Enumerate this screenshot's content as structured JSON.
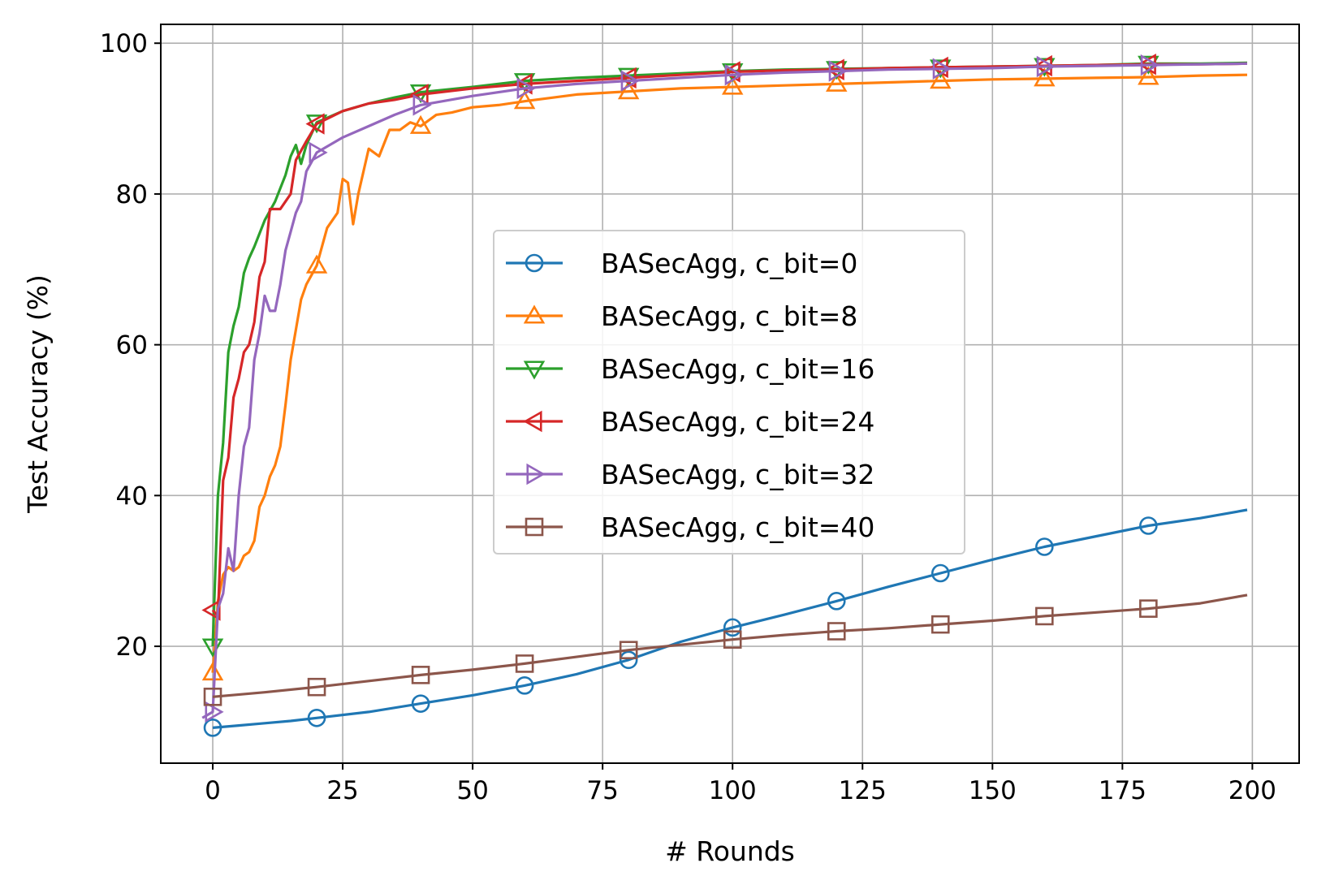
{
  "chart_data": {
    "type": "line",
    "title": "",
    "xlabel": "# Rounds",
    "ylabel": "Test Accuracy (%)",
    "xlim": [
      -10,
      209
    ],
    "ylim": [
      4.5,
      102.5
    ],
    "xticks": [
      0,
      25,
      50,
      75,
      100,
      125,
      150,
      175,
      200
    ],
    "yticks": [
      20,
      40,
      60,
      80,
      100
    ],
    "grid": true,
    "legend_position": "center-right",
    "series": [
      {
        "name": "BASecAgg, c_bit=0",
        "color": "#1f77b4",
        "marker": "circle",
        "points": [
          [
            0,
            9.2
          ],
          [
            5,
            9.5
          ],
          [
            10,
            9.8
          ],
          [
            15,
            10.1
          ],
          [
            20,
            10.5
          ],
          [
            30,
            11.3
          ],
          [
            40,
            12.4
          ],
          [
            50,
            13.5
          ],
          [
            60,
            14.8
          ],
          [
            70,
            16.3
          ],
          [
            80,
            18.2
          ],
          [
            90,
            20.6
          ],
          [
            100,
            22.5
          ],
          [
            110,
            24.2
          ],
          [
            120,
            26.0
          ],
          [
            130,
            27.9
          ],
          [
            140,
            29.7
          ],
          [
            150,
            31.5
          ],
          [
            160,
            33.2
          ],
          [
            170,
            34.6
          ],
          [
            180,
            36.0
          ],
          [
            190,
            37.0
          ],
          [
            199,
            38.1
          ]
        ]
      },
      {
        "name": "BASecAgg, c_bit=8",
        "color": "#ff7f0e",
        "marker": "triangle-up",
        "points": [
          [
            0,
            16.5
          ],
          [
            1,
            26.0
          ],
          [
            2,
            29.5
          ],
          [
            3,
            30.5
          ],
          [
            4,
            30.0
          ],
          [
            5,
            30.5
          ],
          [
            6,
            32.0
          ],
          [
            7,
            32.5
          ],
          [
            8,
            34.0
          ],
          [
            9,
            38.5
          ],
          [
            10,
            40.0
          ],
          [
            11,
            42.5
          ],
          [
            12,
            44.0
          ],
          [
            13,
            46.5
          ],
          [
            14,
            52.0
          ],
          [
            15,
            58.0
          ],
          [
            16,
            62.0
          ],
          [
            17,
            66.0
          ],
          [
            18,
            68.0
          ],
          [
            20,
            70.5
          ],
          [
            22,
            75.5
          ],
          [
            24,
            77.5
          ],
          [
            25,
            82.0
          ],
          [
            26,
            81.5
          ],
          [
            27,
            76.0
          ],
          [
            28,
            80.0
          ],
          [
            30,
            86.0
          ],
          [
            32,
            85.0
          ],
          [
            34,
            88.5
          ],
          [
            36,
            88.5
          ],
          [
            38,
            89.5
          ],
          [
            40,
            89.0
          ],
          [
            43,
            90.5
          ],
          [
            46,
            90.8
          ],
          [
            50,
            91.5
          ],
          [
            55,
            91.8
          ],
          [
            60,
            92.3
          ],
          [
            70,
            93.2
          ],
          [
            80,
            93.6
          ],
          [
            90,
            94.0
          ],
          [
            100,
            94.2
          ],
          [
            110,
            94.4
          ],
          [
            120,
            94.6
          ],
          [
            130,
            94.8
          ],
          [
            140,
            95.0
          ],
          [
            150,
            95.2
          ],
          [
            160,
            95.3
          ],
          [
            170,
            95.4
          ],
          [
            180,
            95.5
          ],
          [
            190,
            95.7
          ],
          [
            199,
            95.8
          ]
        ]
      },
      {
        "name": "BASecAgg, c_bit=16",
        "color": "#2ca02c",
        "marker": "triangle-down",
        "points": [
          [
            0,
            20.0
          ],
          [
            1,
            40.0
          ],
          [
            2,
            47.0
          ],
          [
            3,
            59.0
          ],
          [
            4,
            62.5
          ],
          [
            5,
            65.0
          ],
          [
            6,
            69.5
          ],
          [
            7,
            71.5
          ],
          [
            8,
            73.0
          ],
          [
            10,
            76.5
          ],
          [
            12,
            79.0
          ],
          [
            14,
            82.5
          ],
          [
            15,
            85.0
          ],
          [
            16,
            86.5
          ],
          [
            17,
            84.0
          ],
          [
            18,
            86.5
          ],
          [
            20,
            89.5
          ],
          [
            25,
            91.0
          ],
          [
            30,
            92.0
          ],
          [
            35,
            92.8
          ],
          [
            40,
            93.5
          ],
          [
            50,
            94.2
          ],
          [
            60,
            95.0
          ],
          [
            70,
            95.4
          ],
          [
            80,
            95.7
          ],
          [
            90,
            96.0
          ],
          [
            100,
            96.3
          ],
          [
            110,
            96.5
          ],
          [
            120,
            96.6
          ],
          [
            130,
            96.7
          ],
          [
            140,
            96.8
          ],
          [
            150,
            96.9
          ],
          [
            160,
            97.0
          ],
          [
            170,
            97.1
          ],
          [
            180,
            97.3
          ],
          [
            190,
            97.3
          ],
          [
            199,
            97.4
          ]
        ]
      },
      {
        "name": "BASecAgg, c_bit=24",
        "color": "#d62728",
        "marker": "triangle-left",
        "points": [
          [
            0,
            24.8
          ],
          [
            1,
            24.0
          ],
          [
            2,
            42.0
          ],
          [
            3,
            45.0
          ],
          [
            4,
            53.0
          ],
          [
            5,
            55.5
          ],
          [
            6,
            59.0
          ],
          [
            7,
            60.0
          ],
          [
            8,
            63.0
          ],
          [
            9,
            69.0
          ],
          [
            10,
            71.0
          ],
          [
            11,
            78.0
          ],
          [
            12,
            78.0
          ],
          [
            13,
            78.0
          ],
          [
            14,
            79.0
          ],
          [
            15,
            80.0
          ],
          [
            16,
            84.5
          ],
          [
            18,
            87.0
          ],
          [
            20,
            89.3
          ],
          [
            25,
            91.0
          ],
          [
            30,
            92.0
          ],
          [
            35,
            92.5
          ],
          [
            40,
            93.2
          ],
          [
            50,
            94.0
          ],
          [
            60,
            94.6
          ],
          [
            70,
            95.0
          ],
          [
            80,
            95.4
          ],
          [
            90,
            95.8
          ],
          [
            100,
            96.2
          ],
          [
            110,
            96.4
          ],
          [
            120,
            96.5
          ],
          [
            130,
            96.7
          ],
          [
            140,
            96.8
          ],
          [
            150,
            96.9
          ],
          [
            160,
            97.0
          ],
          [
            170,
            97.1
          ],
          [
            180,
            97.2
          ],
          [
            190,
            97.2
          ],
          [
            199,
            97.3
          ]
        ]
      },
      {
        "name": "BASecAgg, c_bit=32",
        "color": "#9467bd",
        "marker": "triangle-right",
        "points": [
          [
            -2,
            10.5
          ],
          [
            0,
            11.3
          ],
          [
            1,
            25.0
          ],
          [
            2,
            27.0
          ],
          [
            3,
            33.0
          ],
          [
            4,
            30.0
          ],
          [
            5,
            40.0
          ],
          [
            6,
            46.5
          ],
          [
            7,
            49.0
          ],
          [
            8,
            58.0
          ],
          [
            9,
            61.5
          ],
          [
            10,
            66.5
          ],
          [
            11,
            64.5
          ],
          [
            12,
            64.5
          ],
          [
            13,
            68.0
          ],
          [
            14,
            72.5
          ],
          [
            15,
            75.0
          ],
          [
            16,
            77.5
          ],
          [
            17,
            79.0
          ],
          [
            18,
            83.0
          ],
          [
            20,
            85.5
          ],
          [
            25,
            87.5
          ],
          [
            30,
            89.0
          ],
          [
            35,
            90.5
          ],
          [
            40,
            91.8
          ],
          [
            50,
            93.0
          ],
          [
            60,
            94.0
          ],
          [
            70,
            94.6
          ],
          [
            80,
            95.0
          ],
          [
            90,
            95.4
          ],
          [
            100,
            95.8
          ],
          [
            110,
            96.1
          ],
          [
            120,
            96.3
          ],
          [
            130,
            96.5
          ],
          [
            140,
            96.6
          ],
          [
            150,
            96.7
          ],
          [
            160,
            96.9
          ],
          [
            170,
            97.0
          ],
          [
            180,
            97.1
          ],
          [
            190,
            97.2
          ],
          [
            199,
            97.3
          ]
        ]
      },
      {
        "name": "BASecAgg, c_bit=40",
        "color": "#8c564b",
        "marker": "square",
        "points": [
          [
            0,
            13.3
          ],
          [
            10,
            13.9
          ],
          [
            20,
            14.6
          ],
          [
            30,
            15.4
          ],
          [
            40,
            16.2
          ],
          [
            50,
            16.9
          ],
          [
            60,
            17.7
          ],
          [
            70,
            18.6
          ],
          [
            80,
            19.5
          ],
          [
            90,
            20.2
          ],
          [
            100,
            20.9
          ],
          [
            110,
            21.5
          ],
          [
            120,
            22.0
          ],
          [
            130,
            22.4
          ],
          [
            140,
            22.9
          ],
          [
            150,
            23.4
          ],
          [
            160,
            24.0
          ],
          [
            170,
            24.5
          ],
          [
            180,
            25.0
          ],
          [
            190,
            25.7
          ],
          [
            199,
            26.8
          ]
        ]
      }
    ]
  }
}
